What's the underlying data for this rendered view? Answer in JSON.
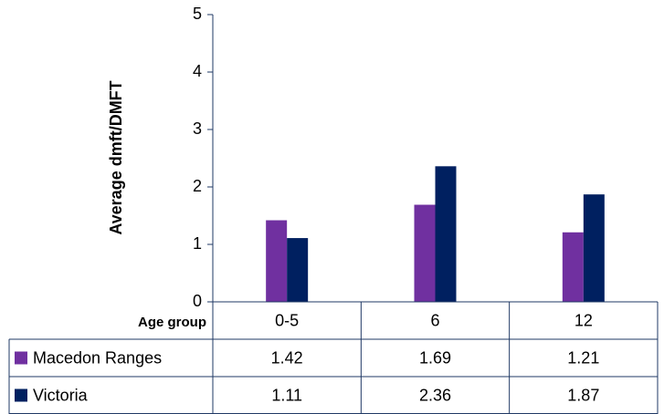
{
  "chart_data": {
    "type": "bar",
    "y_label": "Average dmft/DMFT",
    "x_label": "Age group",
    "categories": [
      "0-5",
      "6",
      "12"
    ],
    "series": [
      {
        "name": "Macedon Ranges",
        "color": "#7030a0",
        "values": [
          1.42,
          1.69,
          1.21
        ]
      },
      {
        "name": "Victoria",
        "color": "#002060",
        "values": [
          1.11,
          2.36,
          1.87
        ]
      }
    ],
    "ylim": [
      0,
      5
    ],
    "yticks": [
      0,
      1,
      2,
      3,
      4,
      5
    ],
    "grid": false
  }
}
